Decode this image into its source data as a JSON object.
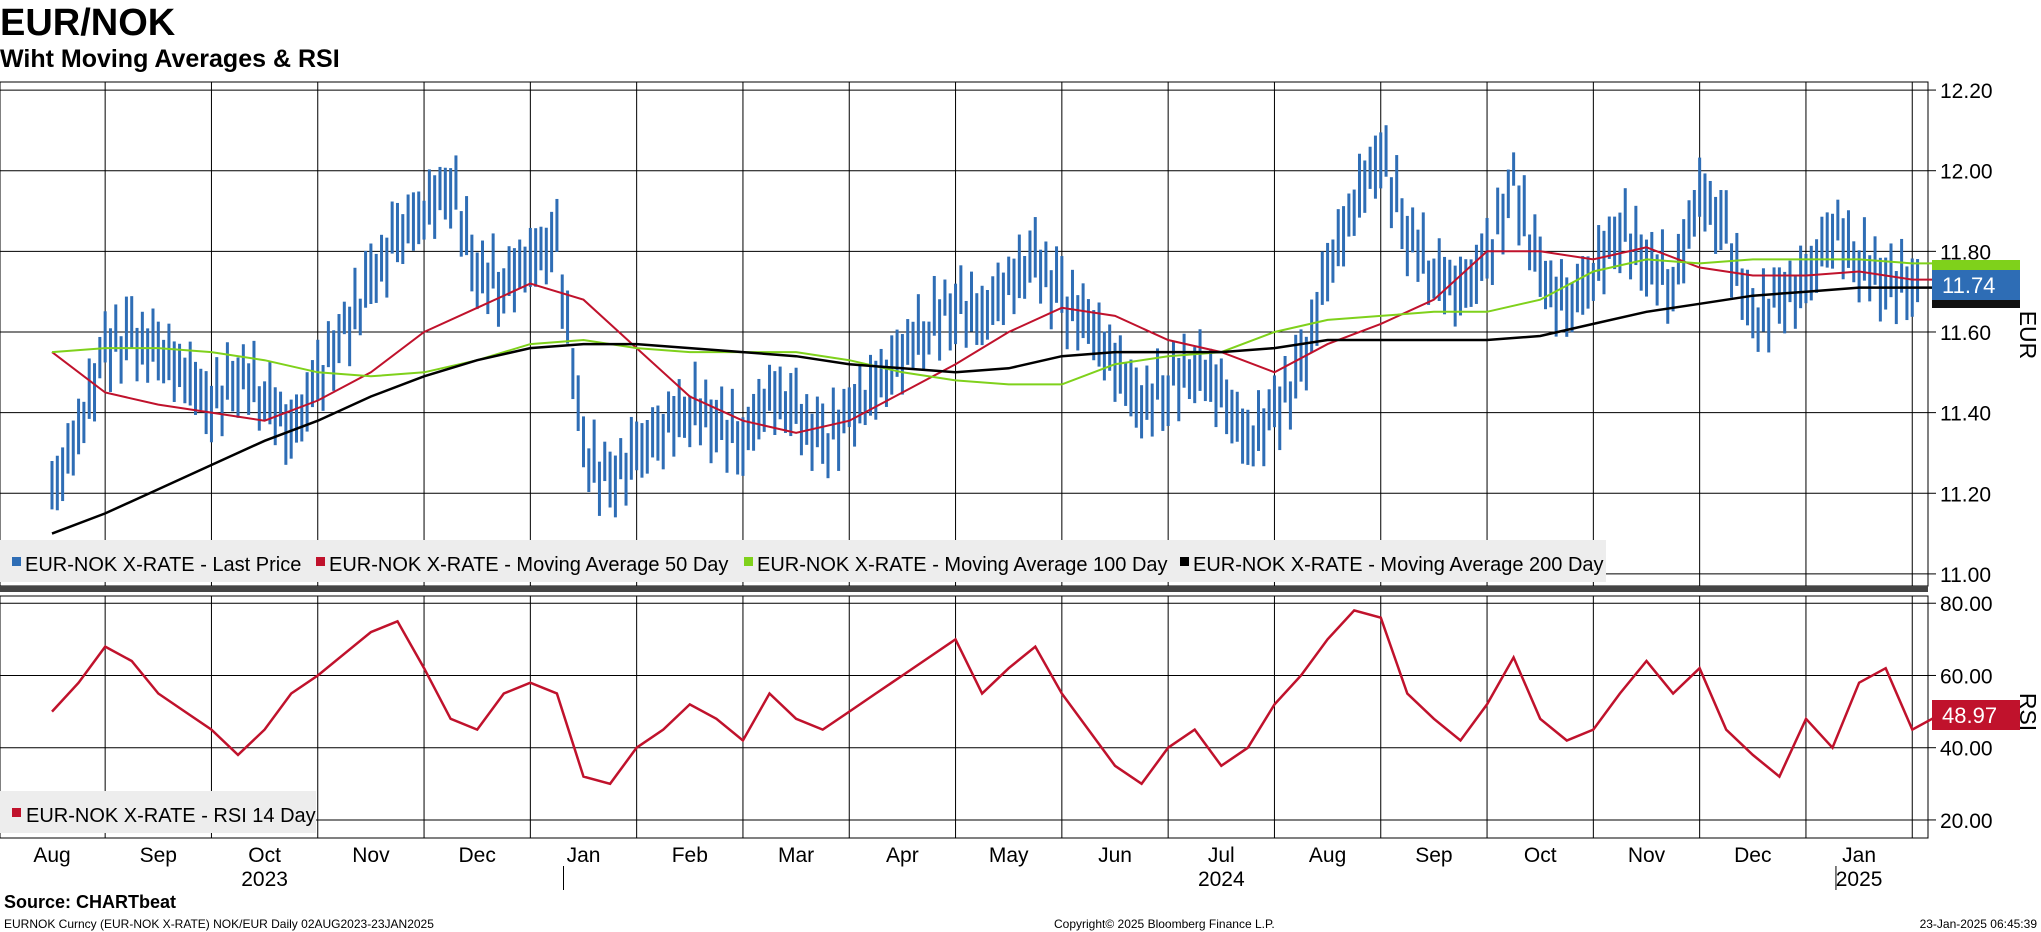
{
  "title": "EUR/NOK",
  "subtitle": "Wiht Moving Averages & RSI",
  "source": "Source: CHARTbeat",
  "footer": {
    "left": "EURNOK Curncy (EUR-NOK X-RATE) NOK/EUR  Daily 02AUG2023-23JAN2025",
    "center": "Copyright© 2025 Bloomberg Finance L.P.",
    "right": "23-Jan-2025 06:45:39"
  },
  "colors": {
    "price": "#2e6db5",
    "ma50": "#c0122c",
    "ma100": "#7fd11b",
    "ma200": "#000000",
    "rsi": "#c0122c",
    "grid": "#000000"
  },
  "chart_data": [
    {
      "type": "line",
      "panel": "price",
      "yaxis_label": "EUR",
      "ylim": [
        10.97,
        12.22
      ],
      "yticks": [
        "12.20",
        "12.00",
        "11.80",
        "11.60",
        "11.40",
        "11.20",
        "11.00"
      ],
      "x_months": [
        "Aug",
        "Sep",
        "Oct",
        "Nov",
        "Dec",
        "Jan",
        "Feb",
        "Mar",
        "Apr",
        "May",
        "Jun",
        "Jul",
        "Aug",
        "Sep",
        "Oct",
        "Nov",
        "Dec",
        "Jan"
      ],
      "x_years": [
        "2023",
        "2024",
        "2025"
      ],
      "legend": [
        "EUR-NOK X-RATE - Last Price",
        "EUR-NOK X-RATE - Moving Average 50 Day",
        "EUR-NOK X-RATE - Moving Average 100 Day",
        "EUR-NOK X-RATE - Moving Average 200 Day"
      ],
      "last_value_label": "11.74",
      "series": [
        {
          "name": "EUR-NOK X-RATE - Last Price",
          "style": "bar",
          "x": [
            0,
            0.25,
            0.5,
            0.75,
            1,
            1.25,
            1.5,
            1.75,
            2,
            2.25,
            2.5,
            2.75,
            3,
            3.25,
            3.5,
            3.75,
            4,
            4.25,
            4.5,
            4.75,
            5,
            5.25,
            5.5,
            5.75,
            6,
            6.25,
            6.5,
            6.75,
            7,
            7.25,
            7.5,
            7.75,
            8,
            8.25,
            8.5,
            8.75,
            9,
            9.25,
            9.5,
            9.75,
            10,
            10.25,
            10.5,
            10.75,
            11,
            11.25,
            11.5,
            11.75,
            12,
            12.25,
            12.5,
            12.75,
            13,
            13.25,
            13.5,
            13.75,
            14,
            14.25,
            14.5,
            14.75,
            15,
            15.25,
            15.5,
            15.75,
            16,
            16.25,
            16.5,
            16.75,
            17,
            17.25,
            17.5,
            17.75
          ],
          "values": [
            11.2,
            11.35,
            11.56,
            11.58,
            11.55,
            11.5,
            11.42,
            11.5,
            11.45,
            11.35,
            11.48,
            11.6,
            11.72,
            11.84,
            11.9,
            11.97,
            11.75,
            11.72,
            11.78,
            11.82,
            11.3,
            11.22,
            11.3,
            11.36,
            11.42,
            11.38,
            11.33,
            11.45,
            11.4,
            11.32,
            11.4,
            11.46,
            11.55,
            11.62,
            11.67,
            11.64,
            11.72,
            11.78,
            11.68,
            11.62,
            11.52,
            11.42,
            11.47,
            11.52,
            11.45,
            11.32,
            11.4,
            11.5,
            11.75,
            11.92,
            12.05,
            11.85,
            11.75,
            11.7,
            11.78,
            11.97,
            11.74,
            11.66,
            11.75,
            11.86,
            11.78,
            11.72,
            11.95,
            11.84,
            11.62,
            11.68,
            11.72,
            11.86,
            11.78,
            11.73,
            11.72,
            11.74
          ]
        },
        {
          "name": "EUR-NOK X-RATE - Moving Average 50 Day",
          "style": "line",
          "x": [
            0,
            0.5,
            1,
            1.5,
            2,
            2.5,
            3,
            3.5,
            4,
            4.5,
            5,
            5.5,
            6,
            6.5,
            7,
            7.5,
            8,
            8.5,
            9,
            9.5,
            10,
            10.5,
            11,
            11.5,
            12,
            12.5,
            13,
            13.5,
            14,
            14.5,
            15,
            15.5,
            16,
            16.5,
            17,
            17.5,
            17.75
          ],
          "values": [
            11.55,
            11.45,
            11.42,
            11.4,
            11.38,
            11.43,
            11.5,
            11.6,
            11.66,
            11.72,
            11.68,
            11.56,
            11.44,
            11.38,
            11.35,
            11.38,
            11.45,
            11.52,
            11.6,
            11.66,
            11.64,
            11.58,
            11.55,
            11.5,
            11.57,
            11.62,
            11.68,
            11.8,
            11.8,
            11.78,
            11.81,
            11.76,
            11.74,
            11.74,
            11.75,
            11.73,
            11.73
          ]
        },
        {
          "name": "EUR-NOK X-RATE - Moving Average 100 Day",
          "style": "line",
          "x": [
            0,
            0.5,
            1,
            1.5,
            2,
            2.5,
            3,
            3.5,
            4,
            4.5,
            5,
            5.5,
            6,
            6.5,
            7,
            7.5,
            8,
            8.5,
            9,
            9.5,
            10,
            10.5,
            11,
            11.5,
            12,
            12.5,
            13,
            13.5,
            14,
            14.5,
            15,
            15.5,
            16,
            16.5,
            17,
            17.5,
            17.75
          ],
          "values": [
            11.55,
            11.56,
            11.56,
            11.55,
            11.53,
            11.5,
            11.49,
            11.5,
            11.53,
            11.57,
            11.58,
            11.56,
            11.55,
            11.55,
            11.55,
            11.53,
            11.5,
            11.48,
            11.47,
            11.47,
            11.52,
            11.54,
            11.55,
            11.6,
            11.63,
            11.64,
            11.65,
            11.65,
            11.68,
            11.75,
            11.78,
            11.77,
            11.78,
            11.78,
            11.78,
            11.77,
            11.77
          ]
        },
        {
          "name": "EUR-NOK X-RATE - Moving Average 200 Day",
          "style": "line",
          "x": [
            0,
            0.5,
            1,
            1.5,
            2,
            2.5,
            3,
            3.5,
            4,
            4.5,
            5,
            5.5,
            6,
            6.5,
            7,
            7.5,
            8,
            8.5,
            9,
            9.5,
            10,
            10.5,
            11,
            11.5,
            12,
            12.5,
            13,
            13.5,
            14,
            14.5,
            15,
            15.5,
            16,
            16.5,
            17,
            17.5,
            17.75
          ],
          "values": [
            11.1,
            11.15,
            11.21,
            11.27,
            11.33,
            11.38,
            11.44,
            11.49,
            11.53,
            11.56,
            11.57,
            11.57,
            11.56,
            11.55,
            11.54,
            11.52,
            11.51,
            11.5,
            11.51,
            11.54,
            11.55,
            11.55,
            11.55,
            11.56,
            11.58,
            11.58,
            11.58,
            11.58,
            11.59,
            11.62,
            11.65,
            11.67,
            11.69,
            11.7,
            11.71,
            11.71,
            11.71
          ]
        }
      ]
    },
    {
      "type": "line",
      "panel": "rsi",
      "yaxis_label": "RSI",
      "ylim": [
        15,
        82
      ],
      "yticks": [
        "80.00",
        "60.00",
        "40.00",
        "20.00"
      ],
      "legend": [
        "EUR-NOK X-RATE - RSI 14 Day"
      ],
      "last_value_label": "48.97",
      "series": [
        {
          "name": "EUR-NOK X-RATE - RSI 14 Day",
          "x": [
            0,
            0.25,
            0.5,
            0.75,
            1,
            1.25,
            1.5,
            1.75,
            2,
            2.25,
            2.5,
            2.75,
            3,
            3.25,
            3.5,
            3.75,
            4,
            4.25,
            4.5,
            4.75,
            5,
            5.25,
            5.5,
            5.75,
            6,
            6.25,
            6.5,
            6.75,
            7,
            7.25,
            7.5,
            7.75,
            8,
            8.25,
            8.5,
            8.75,
            9,
            9.25,
            9.5,
            9.75,
            10,
            10.25,
            10.5,
            10.75,
            11,
            11.25,
            11.5,
            11.75,
            12,
            12.25,
            12.5,
            12.75,
            13,
            13.25,
            13.5,
            13.75,
            14,
            14.25,
            14.5,
            14.75,
            15,
            15.25,
            15.5,
            15.75,
            16,
            16.25,
            16.5,
            16.75,
            17,
            17.25,
            17.5,
            17.75
          ],
          "values": [
            50,
            58,
            68,
            64,
            55,
            50,
            45,
            38,
            45,
            55,
            60,
            66,
            72,
            75,
            62,
            48,
            45,
            55,
            58,
            55,
            32,
            30,
            40,
            45,
            52,
            48,
            42,
            55,
            48,
            45,
            50,
            55,
            60,
            65,
            70,
            55,
            62,
            68,
            55,
            45,
            35,
            30,
            40,
            45,
            35,
            40,
            52,
            60,
            70,
            78,
            76,
            55,
            48,
            42,
            52,
            65,
            48,
            42,
            45,
            55,
            64,
            55,
            62,
            45,
            38,
            32,
            48,
            40,
            58,
            62,
            45,
            49
          ]
        }
      ]
    }
  ]
}
